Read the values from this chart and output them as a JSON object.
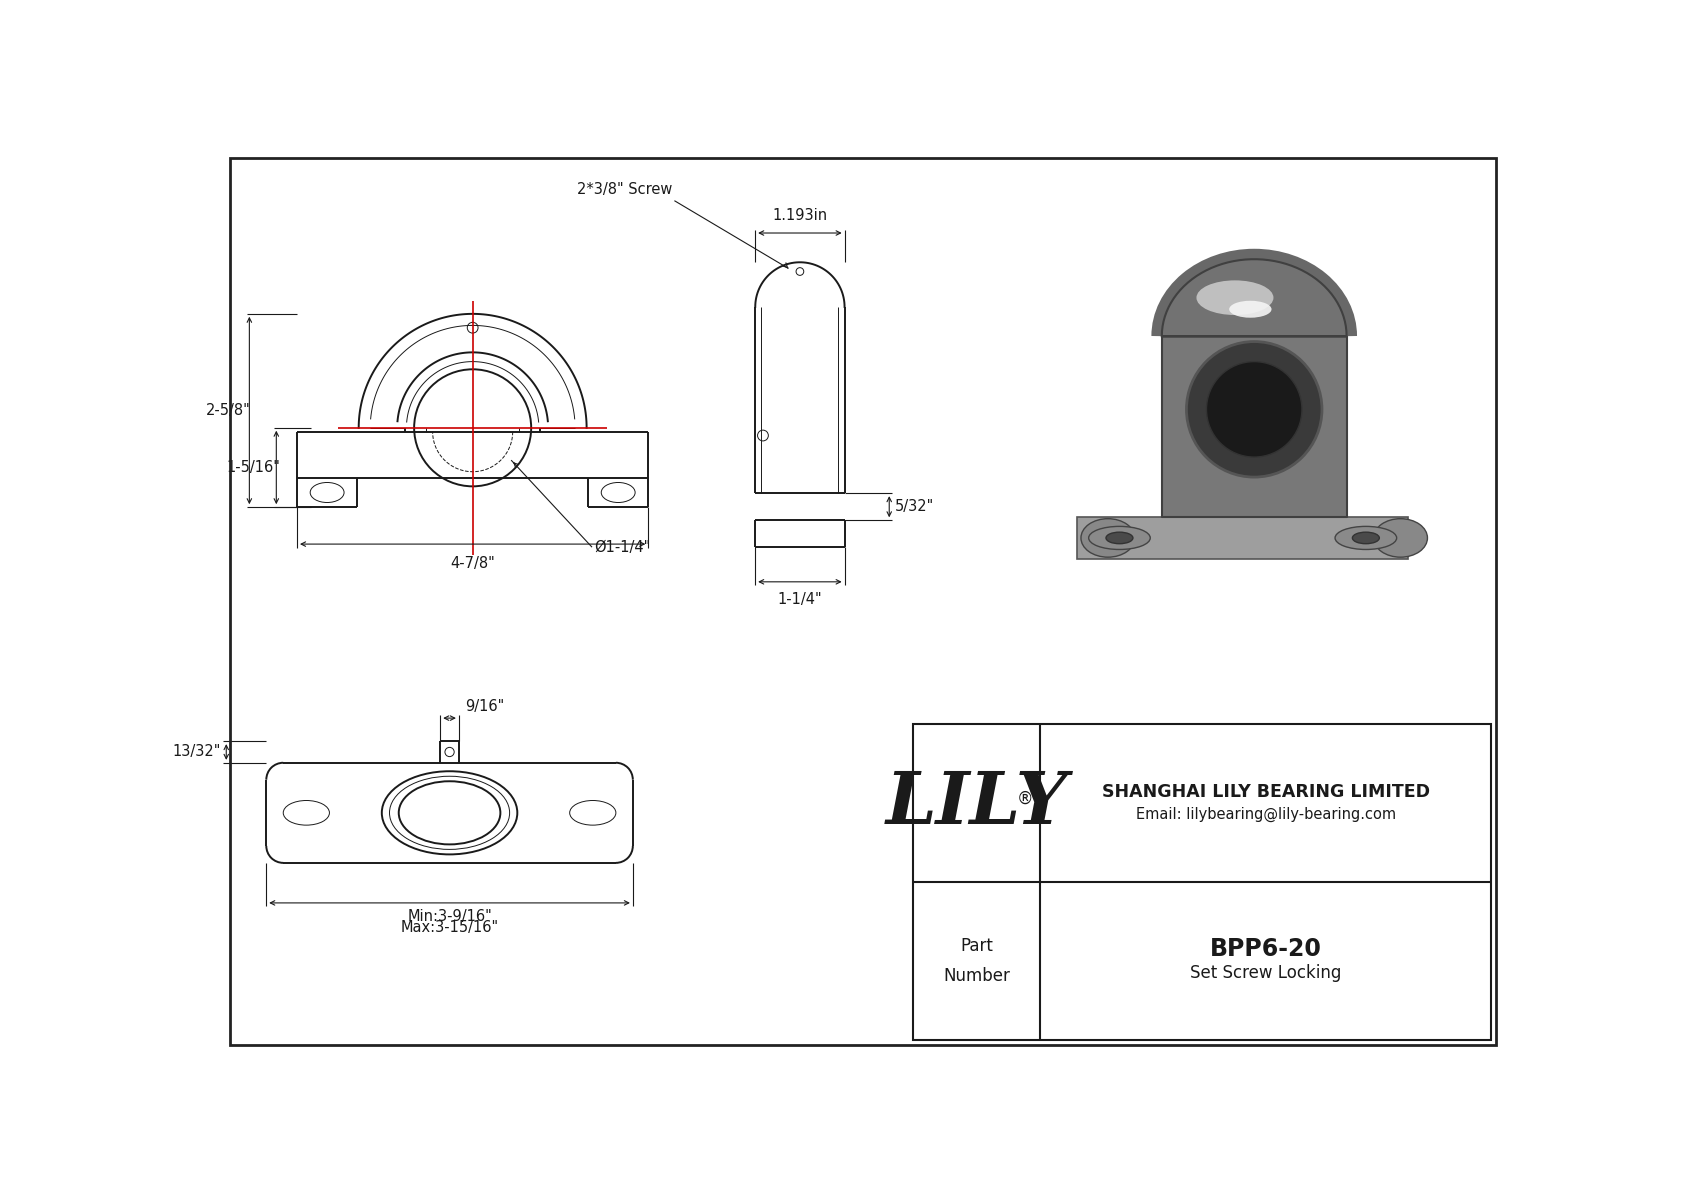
{
  "bg_color": "#ffffff",
  "line_color": "#1a1a1a",
  "dim_color": "#1a1a1a",
  "red_color": "#cc0000",
  "title": "BPP6-20",
  "subtitle": "Set Screw Locking",
  "company": "SHANGHAI LILY BEARING LIMITED",
  "email": "Email: lilybearing@lily-bearing.com",
  "part_label": "Part\nNumber",
  "lily_text": "LILY",
  "dims": {
    "height_total": "2-5/8\"",
    "height_center": "1-5/16\"",
    "width_total": "4-7/8\"",
    "bore_dia": "Ø1-1/4\"",
    "side_width": "1-1/4\"",
    "side_height": "5/32\"",
    "top_width": "1.193in",
    "screw": "2*3/8\" Screw",
    "knob_width": "9/16\"",
    "knob_offset": "13/32\"",
    "min_length": "Min:3-9/16\"",
    "max_length": "Max:3-15/16\""
  },
  "lw_main": 1.4,
  "lw_thin": 0.7,
  "lw_dim": 0.8,
  "lw_border": 2.0
}
